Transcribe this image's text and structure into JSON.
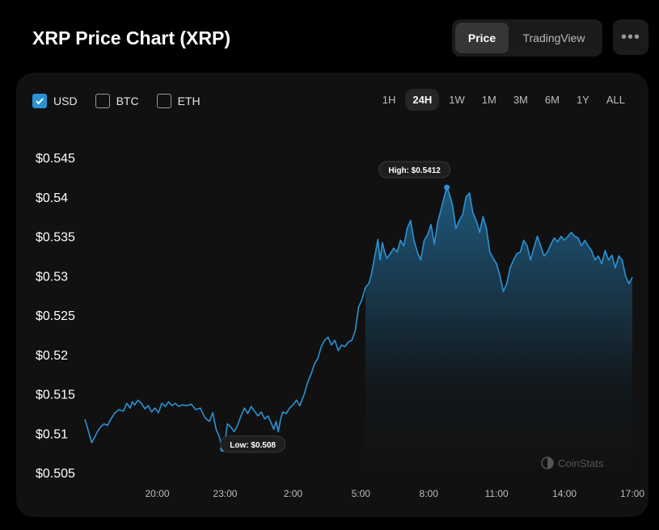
{
  "header": {
    "title": "XRP Price Chart (XRP)",
    "tabs": [
      {
        "label": "Price",
        "active": true
      },
      {
        "label": "TradingView",
        "active": false
      }
    ],
    "more_icon": "ellipsis-icon"
  },
  "currency_toggles": [
    {
      "label": "USD",
      "checked": true
    },
    {
      "label": "BTC",
      "checked": false
    },
    {
      "label": "ETH",
      "checked": false
    }
  ],
  "ranges": [
    {
      "label": "1H",
      "active": false
    },
    {
      "label": "24H",
      "active": true
    },
    {
      "label": "1W",
      "active": false
    },
    {
      "label": "1M",
      "active": false
    },
    {
      "label": "3M",
      "active": false
    },
    {
      "label": "6M",
      "active": false
    },
    {
      "label": "1Y",
      "active": false
    },
    {
      "label": "ALL",
      "active": false
    }
  ],
  "watermark": "CoinStats",
  "colors": {
    "line": "#2a93d5",
    "accent": "#2a93d5",
    "background": "#111111"
  },
  "chart_data": {
    "type": "area",
    "title": "",
    "xlabel": "",
    "ylabel": "",
    "y_tick_labels": [
      "$0.545",
      "$0.54",
      "$0.535",
      "$0.53",
      "$0.525",
      "$0.52",
      "$0.515",
      "$0.51",
      "$0.505"
    ],
    "y_ticks": [
      0.545,
      0.54,
      0.535,
      0.53,
      0.525,
      0.52,
      0.515,
      0.51,
      0.505
    ],
    "ylim": [
      0.505,
      0.545
    ],
    "x_tick_labels": [
      "20:00",
      "23:00",
      "2:00",
      "5:00",
      "8:00",
      "11:00",
      "14:00",
      "17:00"
    ],
    "x_ticks": [
      20,
      23,
      26,
      29,
      32,
      35,
      38,
      41
    ],
    "x_unit": "hours",
    "grid": false,
    "annotations": [
      {
        "label": "High: $0.5412",
        "x": 32.8,
        "y": 0.5412
      },
      {
        "label": "Low: $0.508",
        "x": 22.9,
        "y": 0.508
      }
    ],
    "series": [
      {
        "x": [
          16.8,
          16.95,
          17.1,
          17.25,
          17.35,
          17.5,
          17.65,
          17.8,
          17.95,
          18.1,
          18.3,
          18.5,
          18.65,
          18.8,
          18.9,
          19.0,
          19.15,
          19.3,
          19.45,
          19.6,
          19.75,
          19.9,
          20.05,
          20.2,
          20.35,
          20.5,
          20.65,
          20.8,
          20.95,
          21.1,
          21.3,
          21.5,
          21.7,
          21.9,
          22.1,
          22.3,
          22.45,
          22.6,
          22.75,
          22.85,
          22.95,
          23.1,
          23.25,
          23.4,
          23.55,
          23.7,
          23.85,
          24.0,
          24.15,
          24.3,
          24.45,
          24.6,
          24.75,
          24.9,
          25.05,
          25.15,
          25.25,
          25.35,
          25.45,
          25.55,
          25.7,
          25.85,
          26.0,
          26.15,
          26.3,
          26.5,
          26.65,
          26.8,
          26.95,
          27.1,
          27.25,
          27.4,
          27.55,
          27.7,
          27.85,
          28.0,
          28.15,
          28.3,
          28.45,
          28.6,
          28.75,
          28.9,
          29.05,
          29.2,
          29.35,
          29.45,
          29.55,
          29.65,
          29.75,
          29.85,
          29.95,
          30.05,
          30.15,
          30.3,
          30.45,
          30.6,
          30.75,
          30.9,
          31.05,
          31.2,
          31.35,
          31.5,
          31.65,
          31.8,
          31.95,
          32.1,
          32.25,
          32.4,
          32.55,
          32.7,
          32.8,
          32.9,
          33.05,
          33.2,
          33.35,
          33.5,
          33.65,
          33.8,
          33.95,
          34.1,
          34.25,
          34.4,
          34.55,
          34.7,
          34.85,
          35.0,
          35.15,
          35.3,
          35.45,
          35.6,
          35.75,
          35.9,
          36.05,
          36.2,
          36.35,
          36.5,
          36.65,
          36.8,
          36.95,
          37.1,
          37.25,
          37.4,
          37.55,
          37.7,
          37.85,
          38.0,
          38.15,
          38.3,
          38.45,
          38.6,
          38.75,
          38.9,
          39.05,
          39.2,
          39.35,
          39.5,
          39.65,
          39.8,
          39.95,
          40.1,
          40.25,
          40.4,
          40.55,
          40.7,
          40.85,
          41.0
        ],
        "y": [
          0.5118,
          0.5103,
          0.5088,
          0.5096,
          0.5102,
          0.5108,
          0.5112,
          0.511,
          0.5118,
          0.5125,
          0.513,
          0.5128,
          0.5138,
          0.5132,
          0.514,
          0.5136,
          0.5142,
          0.5138,
          0.5131,
          0.5135,
          0.5127,
          0.5132,
          0.5126,
          0.5138,
          0.5134,
          0.514,
          0.5135,
          0.5138,
          0.5134,
          0.5136,
          0.5135,
          0.5137,
          0.513,
          0.5132,
          0.512,
          0.5115,
          0.5126,
          0.5105,
          0.5095,
          0.5082,
          0.508,
          0.5112,
          0.5108,
          0.5102,
          0.511,
          0.5122,
          0.5132,
          0.5125,
          0.5134,
          0.5128,
          0.5122,
          0.5127,
          0.5118,
          0.5122,
          0.5112,
          0.5105,
          0.5115,
          0.5102,
          0.5118,
          0.5127,
          0.5125,
          0.5132,
          0.5136,
          0.5142,
          0.5135,
          0.515,
          0.5165,
          0.5175,
          0.5188,
          0.5195,
          0.521,
          0.5218,
          0.5222,
          0.5212,
          0.5218,
          0.5205,
          0.5212,
          0.521,
          0.5216,
          0.5218,
          0.523,
          0.526,
          0.527,
          0.5285,
          0.529,
          0.53,
          0.5315,
          0.533,
          0.5346,
          0.532,
          0.5342,
          0.533,
          0.5322,
          0.5328,
          0.5335,
          0.533,
          0.5345,
          0.5338,
          0.536,
          0.537,
          0.5345,
          0.533,
          0.532,
          0.5345,
          0.5352,
          0.5365,
          0.534,
          0.5368,
          0.5385,
          0.5402,
          0.5412,
          0.5405,
          0.539,
          0.536,
          0.537,
          0.5378,
          0.54,
          0.5405,
          0.538,
          0.537,
          0.5355,
          0.5375,
          0.536,
          0.533,
          0.5322,
          0.5315,
          0.53,
          0.528,
          0.529,
          0.531,
          0.532,
          0.5328,
          0.533,
          0.5345,
          0.5338,
          0.532,
          0.5335,
          0.535,
          0.5338,
          0.5325,
          0.533,
          0.534,
          0.5348,
          0.5343,
          0.535,
          0.5345,
          0.535,
          0.5355,
          0.535,
          0.5348,
          0.5338,
          0.5345,
          0.5338,
          0.5332,
          0.532,
          0.5325,
          0.5315,
          0.5332,
          0.532,
          0.5326,
          0.531,
          0.5325,
          0.532,
          0.53,
          0.529,
          0.5298
        ]
      }
    ]
  }
}
